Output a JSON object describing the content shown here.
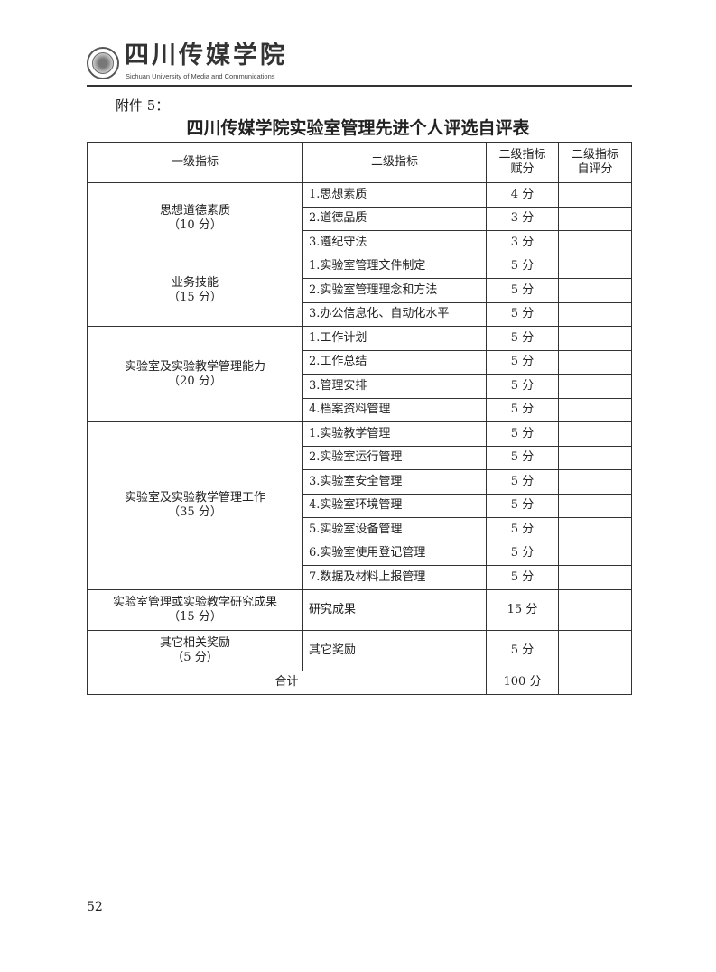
{
  "header": {
    "logo_cn": "四川传媒学院",
    "logo_en": "Sichuan University of Media and Communications"
  },
  "attachment": "附件 5：",
  "title": "四川传媒学院实验室管理先进个人评选自评表",
  "table": {
    "headers": [
      "一级指标",
      "二级指标",
      "二级指标\n赋分",
      "二级指标\n自评分"
    ],
    "groups": [
      {
        "name": "思想道德素质",
        "score": "（10 分）",
        "items": [
          [
            "1.思想素质",
            "4 分"
          ],
          [
            "2.道德品质",
            "3 分"
          ],
          [
            "3.遵纪守法",
            "3 分"
          ]
        ]
      },
      {
        "name": "业务技能",
        "score": "（15 分）",
        "items": [
          [
            "1.实验室管理文件制定",
            "5 分"
          ],
          [
            "2.实验室管理理念和方法",
            "5 分"
          ],
          [
            "3.办公信息化、自动化水平",
            "5 分"
          ]
        ]
      },
      {
        "name": "实验室及实验教学管理能力",
        "score": "（20 分）",
        "items": [
          [
            "1.工作计划",
            "5 分"
          ],
          [
            "2.工作总结",
            "5 分"
          ],
          [
            "3.管理安排",
            "5 分"
          ],
          [
            "4.档案资料管理",
            "5 分"
          ]
        ]
      },
      {
        "name": "实验室及实验教学管理工作",
        "score": "（35 分）",
        "items": [
          [
            "1.实验教学管理",
            "5 分"
          ],
          [
            "2.实验室运行管理",
            "5 分"
          ],
          [
            "3.实验室安全管理",
            "5 分"
          ],
          [
            "4.实验室环境管理",
            "5 分"
          ],
          [
            "5.实验室设备管理",
            "5 分"
          ],
          [
            "6.实验室使用登记管理",
            "5 分"
          ],
          [
            "7.数据及材料上报管理",
            "5 分"
          ]
        ]
      },
      {
        "name": "实验室管理或实验教学研究成果",
        "score": "（15 分）",
        "items": [
          [
            "研究成果",
            "15 分"
          ]
        ]
      },
      {
        "name": "其它相关奖励",
        "score": "（5 分）",
        "items": [
          [
            "其它奖励",
            "5 分"
          ]
        ]
      }
    ],
    "total_label": "合计",
    "total_score": "100 分"
  },
  "page_number": "52"
}
